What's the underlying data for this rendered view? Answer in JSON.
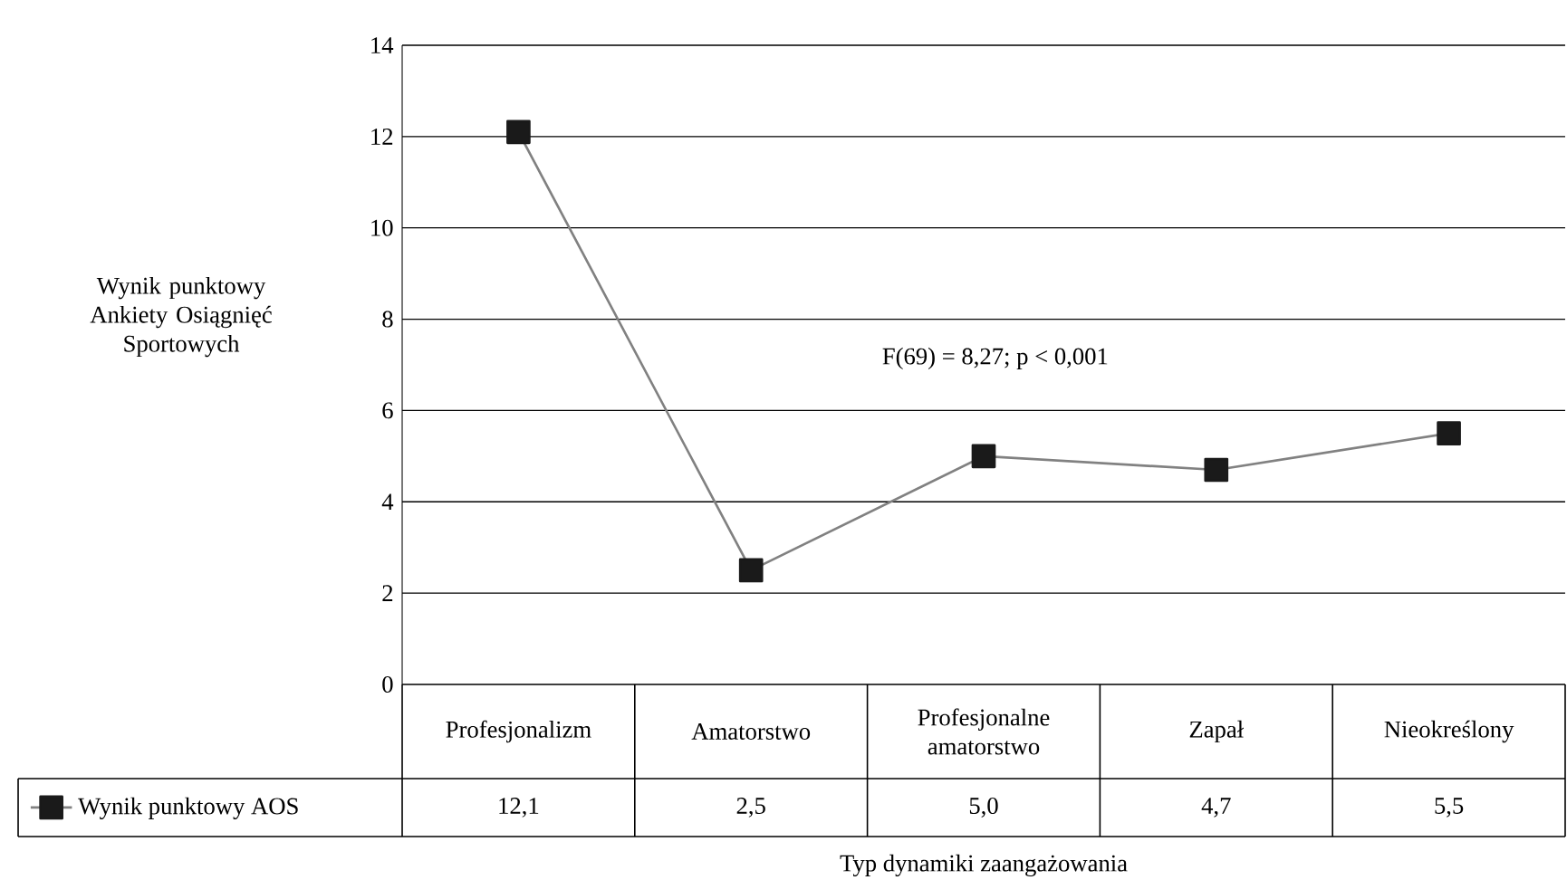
{
  "chart_data": {
    "type": "line",
    "ylabel": "Wynik punktowy Ankiety Osiągnięć Sportowych",
    "xlabel": "Typ dynamiki zaangażowania",
    "categories": [
      "Profesjonalizm",
      "Amatorstwo",
      "Profesjonalne amatorstwo",
      "Zapał",
      "Nieokreślony"
    ],
    "series": [
      {
        "name": "Wynik punktowy AOS",
        "color": "#1a1a1a",
        "values": [
          12.1,
          2.5,
          5.0,
          4.7,
          5.5
        ],
        "value_labels": [
          "12,1",
          "2,5",
          "5,0",
          "4,7",
          "5,5"
        ]
      }
    ],
    "ylim": [
      0,
      14
    ],
    "yticks": [
      0,
      2,
      4,
      6,
      8,
      10,
      12,
      14
    ],
    "grid": "y",
    "legend": "bottom left",
    "marker": "square",
    "line_style": "solid",
    "annotations": [
      "F(69) = 8,27; p < 0,001"
    ]
  }
}
